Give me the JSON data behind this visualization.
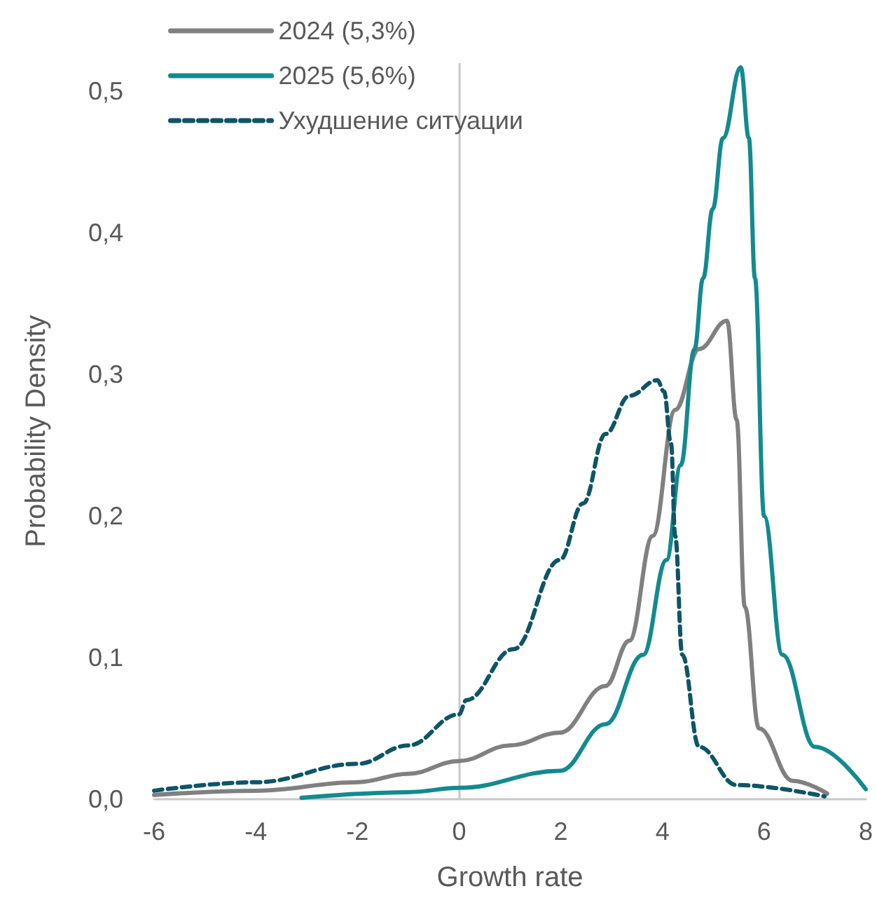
{
  "chart_data": {
    "type": "line",
    "xlabel": "Growth rate",
    "ylabel": "Probability Density",
    "xlim": [
      -6,
      8
    ],
    "xticks": [
      -6,
      -4,
      -2,
      0,
      2,
      4,
      6,
      8
    ],
    "ylim": [
      0,
      0.52
    ],
    "yticks": [
      {
        "value": 0,
        "label": "0,0"
      },
      {
        "value": 0.1,
        "label": "0,1"
      },
      {
        "value": 0.2,
        "label": "0,2"
      },
      {
        "value": 0.3,
        "label": "0,3"
      },
      {
        "value": 0.4,
        "label": "0,4"
      },
      {
        "value": 0.5,
        "label": "0,5"
      }
    ],
    "grid": false,
    "legend": "top left",
    "marker": "none",
    "ref_lines": [
      {
        "axis": "x",
        "value": 0,
        "color": "#c8c8c8"
      }
    ],
    "series": [
      {
        "name": "2024 (5,3%)",
        "color": "#808080",
        "line_style": "solid",
        "x": [
          -6,
          -4,
          -2,
          -1,
          0,
          1,
          1.98,
          2.88,
          3.35,
          3.81,
          4.25,
          4.72,
          5.27,
          5.46,
          5.62,
          5.9,
          6.56,
          7.24
        ],
        "values": [
          0.003,
          0.006,
          0.012,
          0.018,
          0.027,
          0.038,
          0.047,
          0.08,
          0.112,
          0.186,
          0.275,
          0.318,
          0.338,
          0.268,
          0.136,
          0.05,
          0.013,
          0.004
        ]
      },
      {
        "name": "2025 (5,6%)",
        "color": "#138a8f",
        "line_style": "solid",
        "x": [
          -3.1,
          -1,
          0,
          1.98,
          2.88,
          3.62,
          4.08,
          4.36,
          4.63,
          4.8,
          4.99,
          5.19,
          5.54,
          5.7,
          5.82,
          6.0,
          6.36,
          7.0,
          8.0
        ],
        "values": [
          0.001,
          0.005,
          0.008,
          0.02,
          0.053,
          0.102,
          0.169,
          0.236,
          0.318,
          0.368,
          0.417,
          0.467,
          0.517,
          0.467,
          0.368,
          0.2,
          0.102,
          0.037,
          0.007
        ]
      },
      {
        "name": "Ухудшение ситуации",
        "color": "#0e5566",
        "line_style": "dashed",
        "x": [
          -6,
          -4,
          -2,
          -1,
          0,
          0.14,
          1.07,
          1.98,
          2.44,
          2.88,
          3.35,
          3.9,
          4.03,
          4.17,
          4.25,
          4.39,
          4.72,
          5.46,
          7.19
        ],
        "values": [
          0.006,
          0.012,
          0.025,
          0.038,
          0.06,
          0.07,
          0.106,
          0.169,
          0.209,
          0.258,
          0.285,
          0.296,
          0.288,
          0.251,
          0.186,
          0.102,
          0.037,
          0.01,
          0.002
        ]
      }
    ]
  }
}
